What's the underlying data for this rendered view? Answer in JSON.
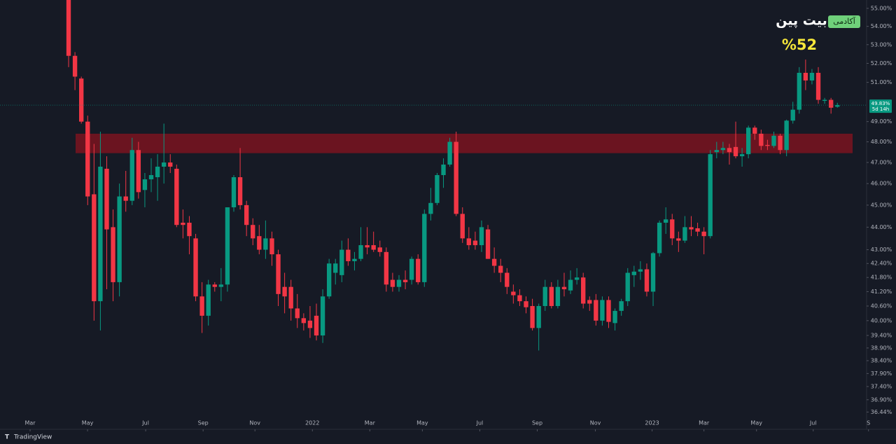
{
  "chart_data": {
    "type": "candlestick",
    "up_color": "#089981",
    "down_color": "#f23645",
    "log_scale": true,
    "ylim": [
      35.83,
      55.47
    ],
    "yticks": [
      {
        "value": 55,
        "label": "55.00%"
      },
      {
        "value": 54,
        "label": "54.00%"
      },
      {
        "value": 53,
        "label": "53.00%"
      },
      {
        "value": 52,
        "label": "52.00%"
      },
      {
        "value": 51,
        "label": "51.00%"
      },
      {
        "value": 49,
        "label": "49.00%"
      },
      {
        "value": 48,
        "label": "48.00%"
      },
      {
        "value": 47,
        "label": "47.00%"
      },
      {
        "value": 46,
        "label": "46.00%"
      },
      {
        "value": 45,
        "label": "45.00%"
      },
      {
        "value": 44,
        "label": "44.00%"
      },
      {
        "value": 43,
        "label": "43.00%"
      },
      {
        "value": 42.4,
        "label": "42.40%"
      },
      {
        "value": 41.8,
        "label": "41.80%"
      },
      {
        "value": 41.2,
        "label": "41.20%"
      },
      {
        "value": 40.6,
        "label": "40.60%"
      },
      {
        "value": 40,
        "label": "40.00%"
      },
      {
        "value": 39.4,
        "label": "39.40%"
      },
      {
        "value": 38.9,
        "label": "38.90%"
      },
      {
        "value": 38.4,
        "label": "38.40%"
      },
      {
        "value": 37.9,
        "label": "37.90%"
      },
      {
        "value": 37.4,
        "label": "37.40%"
      },
      {
        "value": 36.9,
        "label": "36.90%"
      },
      {
        "value": 36.44,
        "label": "36.44%"
      }
    ],
    "xlim": [
      -10.8,
      125.6
    ],
    "xticks": [
      {
        "value": -6.06,
        "label": "Mar"
      },
      {
        "value": 2.98,
        "label": "May"
      },
      {
        "value": 12.13,
        "label": "Jul"
      },
      {
        "value": 21.17,
        "label": "Sep"
      },
      {
        "value": 29.33,
        "label": "Nov"
      },
      {
        "value": 38.37,
        "label": "2022"
      },
      {
        "value": 47.41,
        "label": "Mar"
      },
      {
        "value": 55.68,
        "label": "May"
      },
      {
        "value": 64.72,
        "label": "Jul"
      },
      {
        "value": 73.76,
        "label": "Sep"
      },
      {
        "value": 82.91,
        "label": "Nov"
      },
      {
        "value": 91.84,
        "label": "2023"
      },
      {
        "value": 100.0,
        "label": "Mar"
      },
      {
        "value": 108.27,
        "label": "May"
      },
      {
        "value": 117.2,
        "label": "Jul"
      },
      {
        "value": 125.9,
        "label": "S"
      }
    ],
    "open": [
      56.0,
      52.4,
      51.2,
      49.0,
      45.5,
      40.8,
      46.7,
      44.0,
      41.6,
      45.4,
      45.2,
      47.6,
      45.7,
      46.2,
      46.3,
      46.8,
      47.0,
      46.7,
      44.2,
      44.2,
      43.5,
      41.0,
      40.2,
      41.5,
      41.4,
      41.5,
      44.9,
      46.3,
      45.0,
      44.1,
      43.6,
      43.0,
      43.5,
      42.8,
      41.4,
      41.4,
      40.5,
      40.1,
      40.0,
      40.2,
      39.4,
      41.0,
      42.0,
      41.9,
      43.0,
      42.5,
      42.6,
      43.2,
      43.2,
      43.1,
      42.9,
      41.7,
      41.4,
      41.7,
      41.7,
      42.6,
      41.6,
      44.6,
      45.1,
      46.4,
      46.9,
      48.0,
      44.6,
      43.5,
      43.4,
      43.2,
      43.9,
      42.6,
      42.3,
      42.0,
      41.2,
      41.05,
      40.8,
      40.6,
      39.7,
      40.6,
      41.4,
      40.6,
      41.4,
      41.25,
      41.7,
      41.8,
      40.85,
      40.85,
      40.0,
      40.85,
      39.9,
      40.4,
      40.8,
      41.9,
      42.05,
      42.15,
      41.2,
      42.85,
      44.2,
      44.35,
      43.5,
      43.4,
      44.0,
      43.95,
      43.8,
      43.6,
      47.5,
      47.6,
      47.7,
      47.75,
      47.3,
      47.4,
      48.7,
      48.4,
      47.85,
      47.8,
      48.3,
      47.6,
      49.05,
      49.6,
      51.5,
      51.1,
      51.5,
      50.05,
      50.1,
      49.75
    ],
    "high": [
      56.5,
      52.6,
      51.3,
      49.3,
      47.9,
      48.5,
      47.3,
      44.8,
      46.0,
      46.6,
      48.2,
      48.0,
      46.5,
      47.2,
      47.4,
      48.9,
      47.4,
      46.9,
      44.8,
      44.5,
      43.7,
      41.6,
      41.7,
      41.6,
      42.2,
      44.9,
      46.4,
      47.7,
      45.2,
      44.4,
      44.1,
      44.3,
      43.8,
      43.0,
      42.0,
      41.7,
      41.1,
      40.3,
      40.6,
      40.7,
      41.3,
      42.6,
      42.6,
      43.4,
      43.5,
      42.9,
      44.0,
      44.0,
      43.8,
      43.4,
      43.1,
      42.0,
      41.9,
      42.1,
      42.7,
      42.8,
      44.8,
      45.8,
      46.5,
      47.2,
      48.2,
      48.5,
      44.9,
      44.0,
      43.8,
      44.3,
      44.1,
      43.1,
      42.6,
      42.2,
      41.5,
      41.3,
      41.0,
      40.9,
      40.7,
      41.7,
      41.6,
      41.7,
      42.0,
      42.1,
      42.2,
      42.0,
      41.0,
      41.1,
      41.0,
      41.0,
      40.5,
      40.9,
      42.2,
      42.3,
      42.5,
      42.4,
      42.9,
      44.3,
      44.9,
      44.6,
      43.8,
      44.5,
      44.5,
      44.2,
      44.0,
      47.6,
      48.0,
      48.0,
      47.9,
      49.0,
      47.7,
      48.8,
      48.8,
      48.6,
      48.1,
      48.5,
      48.4,
      49.1,
      50.0,
      51.8,
      52.2,
      51.7,
      51.8,
      50.2,
      50.2,
      49.95
    ],
    "low": [
      51.8,
      50.6,
      48.9,
      45.0,
      40.0,
      39.6,
      41.3,
      40.8,
      41.0,
      44.7,
      45.0,
      45.3,
      44.9,
      45.6,
      45.2,
      46.0,
      46.5,
      44.0,
      43.5,
      42.8,
      40.8,
      39.5,
      39.8,
      41.2,
      40.8,
      41.2,
      44.7,
      44.8,
      43.6,
      43.2,
      42.8,
      42.6,
      42.3,
      40.6,
      40.3,
      40.0,
      39.7,
      39.6,
      39.3,
      39.2,
      39.1,
      40.9,
      41.5,
      41.6,
      42.3,
      42.1,
      42.5,
      42.8,
      42.9,
      42.7,
      41.2,
      41.2,
      41.2,
      41.3,
      41.5,
      41.5,
      41.4,
      44.3,
      45.0,
      45.8,
      46.8,
      44.5,
      43.3,
      43.0,
      43.0,
      42.9,
      42.6,
      42.0,
      41.6,
      41.1,
      40.7,
      40.6,
      40.3,
      39.6,
      38.8,
      40.4,
      40.5,
      40.5,
      41.0,
      41.1,
      41.5,
      40.5,
      40.4,
      39.8,
      39.8,
      39.7,
      39.6,
      40.2,
      40.6,
      41.4,
      41.7,
      41.0,
      40.6,
      42.7,
      43.7,
      43.2,
      42.9,
      43.3,
      43.6,
      43.6,
      42.8,
      43.5,
      47.2,
      47.4,
      46.9,
      47.2,
      46.8,
      47.2,
      48.1,
      47.6,
      47.6,
      47.7,
      47.4,
      47.3,
      48.9,
      49.4,
      50.6,
      50.9,
      49.9,
      49.9,
      49.4,
      49.7
    ],
    "close": [
      52.4,
      51.3,
      49.0,
      45.4,
      40.8,
      46.8,
      43.9,
      41.6,
      45.4,
      45.2,
      47.6,
      45.6,
      46.2,
      46.4,
      46.8,
      47.0,
      46.8,
      44.1,
      44.1,
      43.6,
      41.0,
      40.2,
      41.5,
      41.4,
      41.5,
      44.9,
      46.3,
      45.0,
      44.1,
      43.5,
      43.0,
      43.5,
      42.8,
      41.1,
      41.0,
      40.5,
      40.1,
      39.9,
      39.7,
      39.4,
      41.0,
      42.4,
      42.4,
      43.0,
      42.5,
      42.6,
      43.2,
      43.1,
      43.0,
      42.9,
      41.5,
      41.4,
      41.7,
      41.6,
      42.6,
      41.6,
      44.6,
      45.1,
      46.4,
      46.9,
      48.0,
      44.6,
      43.5,
      43.2,
      43.2,
      44.0,
      42.6,
      42.3,
      42.0,
      41.4,
      41.05,
      40.8,
      40.55,
      39.7,
      40.6,
      41.4,
      40.6,
      41.4,
      41.3,
      41.7,
      41.8,
      40.7,
      40.7,
      40.0,
      40.85,
      39.95,
      40.4,
      40.8,
      42.0,
      42.05,
      42.15,
      41.2,
      42.85,
      44.2,
      44.35,
      43.5,
      43.4,
      44.0,
      43.9,
      43.8,
      43.6,
      47.4,
      47.6,
      47.7,
      47.5,
      47.3,
      47.4,
      48.7,
      48.4,
      47.8,
      47.8,
      48.3,
      47.6,
      49.05,
      49.6,
      51.5,
      51.1,
      51.5,
      50.1,
      50.1,
      49.7,
      49.83
    ],
    "zone": {
      "x": [
        1.1,
        123.4
      ],
      "y": [
        47.45,
        48.4
      ],
      "color": "#7a1420"
    },
    "last_price": {
      "value": 49.83,
      "label": "49.83%",
      "countdown": "5d 14h"
    },
    "annotation": "%52",
    "brand": {
      "name": "بیت پین",
      "tag": "آکادمی"
    },
    "footer": "TradingView"
  }
}
